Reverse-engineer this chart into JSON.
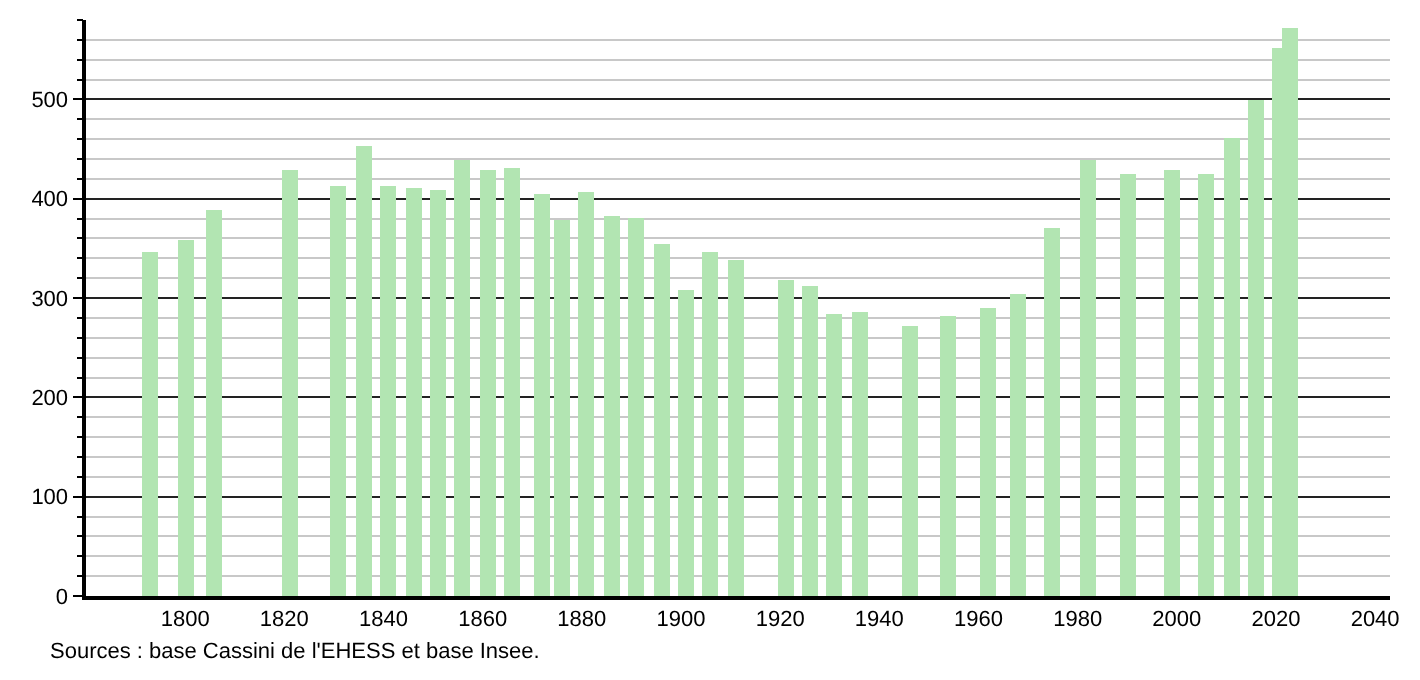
{
  "chart_data": {
    "type": "bar",
    "color": "#b2e5b2",
    "x": [
      1793,
      1800,
      1806,
      1821,
      1831,
      1836,
      1841,
      1846,
      1851,
      1856,
      1861,
      1866,
      1872,
      1876,
      1881,
      1886,
      1891,
      1896,
      1901,
      1906,
      1911,
      1921,
      1926,
      1931,
      1936,
      1946,
      1954,
      1962,
      1968,
      1975,
      1982,
      1990,
      1999,
      2006,
      2011,
      2016,
      2021,
      2023
    ],
    "values": [
      346,
      359,
      388,
      428,
      412,
      454,
      412,
      410,
      408,
      440,
      428,
      430,
      404,
      379,
      406,
      382,
      380,
      354,
      308,
      346,
      339,
      319,
      312,
      284,
      286,
      272,
      281,
      290,
      304,
      370,
      439,
      424,
      429,
      424,
      462,
      500,
      552,
      572
    ],
    "xlim": [
      1780,
      2043
    ],
    "xticks": [
      1800,
      1820,
      1840,
      1860,
      1880,
      1900,
      1920,
      1940,
      1960,
      1980,
      2000,
      2020,
      2040
    ],
    "ylim": [
      0,
      580
    ],
    "yticks": [
      0,
      {
        "value": 20,
        "label": null
      },
      {
        "value": 40,
        "label": null
      },
      {
        "value": 60,
        "label": null
      },
      {
        "value": 80,
        "label": null
      },
      100,
      {
        "value": 120,
        "label": null
      },
      {
        "value": 140,
        "label": null
      },
      {
        "value": 160,
        "label": null
      },
      {
        "value": 180,
        "label": null
      },
      200,
      {
        "value": 220,
        "label": null
      },
      {
        "value": 240,
        "label": null
      },
      {
        "value": 260,
        "label": null
      },
      {
        "value": 280,
        "label": null
      },
      300,
      {
        "value": 320,
        "label": null
      },
      {
        "value": 340,
        "label": null
      },
      {
        "value": 360,
        "label": null
      },
      {
        "value": 380,
        "label": null
      },
      400,
      {
        "value": 420,
        "label": null
      },
      {
        "value": 440,
        "label": null
      },
      {
        "value": 460,
        "label": null
      },
      {
        "value": 480,
        "label": null
      },
      500,
      {
        "value": 520,
        "label": null
      },
      {
        "value": 540,
        "label": null
      },
      {
        "value": 560,
        "label": null
      },
      {
        "value": 580,
        "label": null
      }
    ],
    "grid": "y",
    "annotations": [
      "Sources : base Cassini de l'EHESS et base Insee."
    ]
  }
}
